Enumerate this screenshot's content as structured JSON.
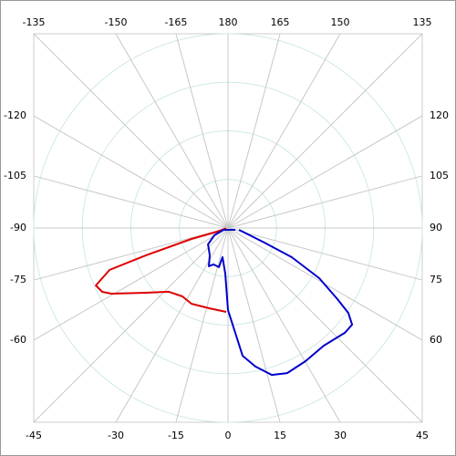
{
  "chart_data": {
    "type": "polar",
    "angle_ticks": [
      -45,
      -30,
      -15,
      0,
      15,
      30,
      45,
      60,
      75,
      90,
      105,
      120,
      135,
      150,
      165,
      180,
      -165,
      -150,
      -135,
      -120,
      -105,
      -90,
      -75,
      -60
    ],
    "rlim": [
      0,
      100
    ],
    "series": [
      {
        "color": "#dd0000",
        "theta": [
          -80,
          -71.6,
          -73.3,
          -71.6,
          -70.5,
          -66.5,
          -63.1,
          -60.6,
          -51.7,
          -42.9,
          -33.7,
          -25.7,
          -12.8,
          -1.2
        ],
        "r": [
          1,
          5.9,
          19.6,
          44.5,
          64.7,
          74.2,
          72.6,
          68.9,
          53.8,
          44.8,
          42.3,
          43.3,
          42.4,
          43.2
        ]
      },
      {
        "color": "#0000cc",
        "theta": [
          76,
          -68,
          -61.9,
          -50.7,
          -33.7,
          -26.6,
          -21.8,
          -13.1,
          -10.6,
          -3.4,
          0,
          4.0,
          6.5,
          11.2,
          16.6,
          22.2,
          30.2,
          39.1,
          48.1,
          52.1,
          54.8,
          57.0,
          61.2,
          65.4,
          68.2,
          73.3,
          80.5
        ],
        "r": [
          3.9,
          2.5,
          8.0,
          13.3,
          16.9,
          22.0,
          20.2,
          20.7,
          15.3,
          23.5,
          42.3,
          54.1,
          66.2,
          72.7,
          78.9,
          80.7,
          79.3,
          78.1,
          80.8,
          81.0,
          75.8,
          67.2,
          53.6,
          36.1,
          20.2,
          9.8,
          5.7
        ]
      }
    ]
  }
}
